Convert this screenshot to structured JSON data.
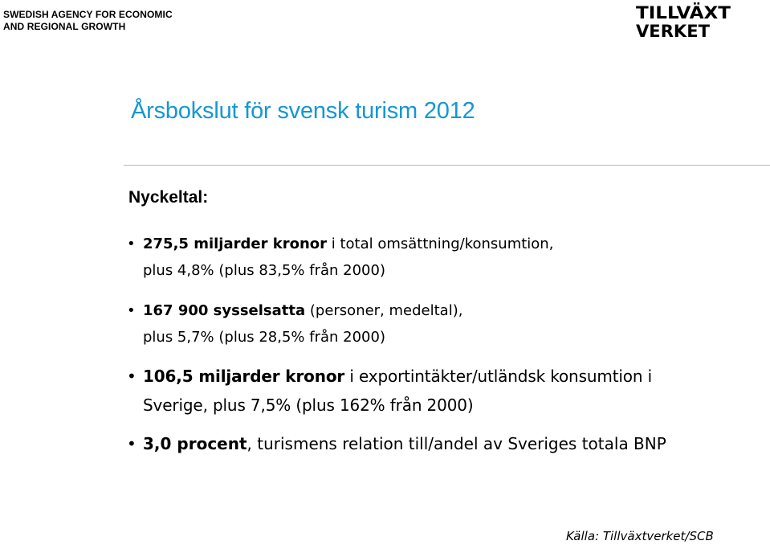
{
  "header": {
    "agency_line1": "SWEDISH AGENCY FOR ECONOMIC",
    "agency_line2": "AND REGIONAL GROWTH",
    "logo_line1": "TILLVÄXT",
    "logo_line2": "VERKET"
  },
  "slide": {
    "title": "Årsbokslut för svensk turism 2012",
    "subheading": "Nyckeltal:",
    "bullets": [
      {
        "strong": "275,5 miljarder kronor",
        "rest": " i total omsättning/konsumtion,",
        "line2": "plus 4,8% (plus 83,5% från 2000)"
      },
      {
        "strong": "167 900 sysselsatta",
        "rest": " (personer, medeltal),",
        "line2": "plus 5,7% (plus 28,5% från 2000)"
      },
      {
        "strong": "106,5 miljarder kronor",
        "rest": " i exportintäkter/utländsk konsumtion i",
        "line2": "Sverige, plus 7,5% (plus 162% från 2000)"
      },
      {
        "strong": "3,0 procent",
        "rest": ", turismens relation till/andel av Sveriges totala BNP"
      }
    ],
    "source": "Källa: Tillväxtverket/SCB"
  },
  "colors": {
    "title": "#1597d2",
    "divider": "#b8b8b8"
  }
}
